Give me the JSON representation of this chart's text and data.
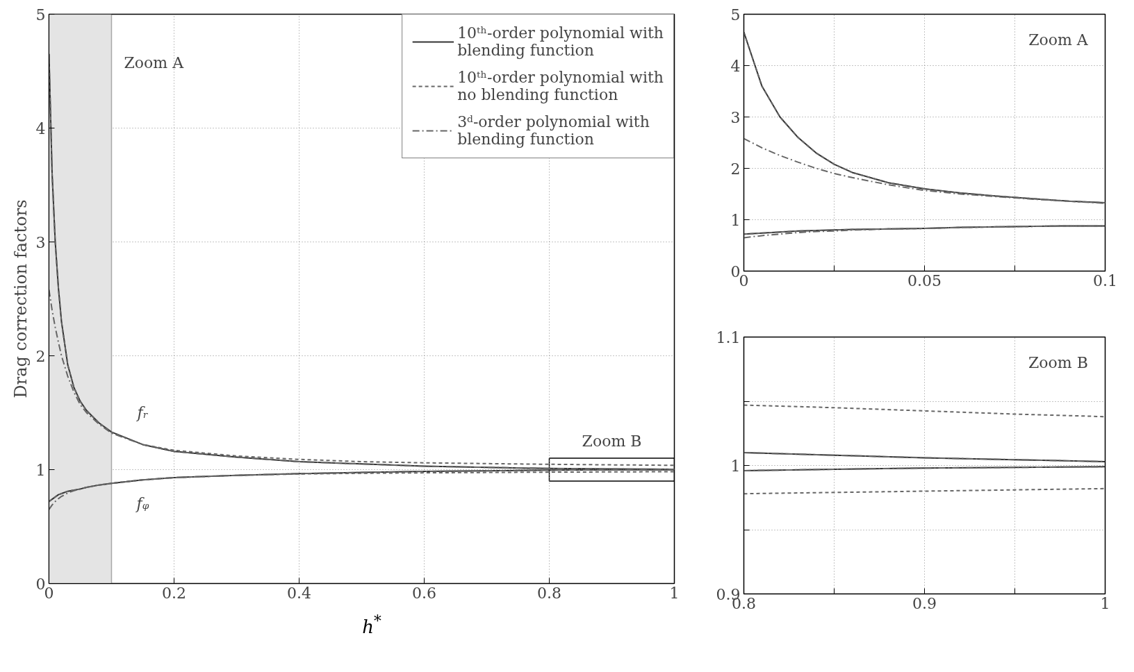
{
  "chart_data": [
    {
      "type": "line",
      "xlabel": "h$^{*}$",
      "ylabel": "Drag correction factors",
      "xlim": [
        0,
        1
      ],
      "ylim": [
        0,
        5
      ],
      "xticks": [
        0,
        0.2,
        0.4,
        0.6,
        0.8,
        1
      ],
      "yticks": [
        0,
        1,
        2,
        3,
        4,
        5
      ],
      "grid": true,
      "legend": "top right",
      "x": [
        0,
        0.005,
        0.01,
        0.015,
        0.02,
        0.03,
        0.04,
        0.05,
        0.06,
        0.08,
        0.1,
        0.15,
        0.2,
        0.3,
        0.4,
        0.5,
        0.6,
        0.7,
        0.8,
        0.9,
        1.0
      ],
      "series": [
        {
          "name": "10ᵗʰ-order polynomial with blending function",
          "color": "#333333",
          "line_style": "solid",
          "values": [
            4.65,
            3.6,
            3.0,
            2.6,
            2.3,
            1.92,
            1.72,
            1.6,
            1.52,
            1.41,
            1.33,
            1.22,
            1.16,
            1.11,
            1.07,
            1.05,
            1.03,
            1.02,
            1.01,
            1.006,
            1.003
          ]
        },
        {
          "color": "#333333",
          "line_style": "solid",
          "values": [
            0.72,
            0.74,
            0.76,
            0.78,
            0.79,
            0.81,
            0.82,
            0.83,
            0.845,
            0.865,
            0.88,
            0.91,
            0.93,
            0.95,
            0.965,
            0.975,
            0.985,
            0.99,
            0.996,
            0.998,
            0.999
          ]
        },
        {
          "name": "10ᵗʰ-order polynomial with no blending function",
          "color": "#666666",
          "line_style": "dashed",
          "values": [
            4.65,
            3.6,
            3.0,
            2.6,
            2.3,
            1.92,
            1.72,
            1.6,
            1.52,
            1.41,
            1.33,
            1.22,
            1.17,
            1.12,
            1.09,
            1.07,
            1.06,
            1.053,
            1.047,
            1.042,
            1.038
          ]
        },
        {
          "color": "#666666",
          "line_style": "dashed",
          "values": [
            0.72,
            0.74,
            0.76,
            0.78,
            0.79,
            0.81,
            0.82,
            0.83,
            0.845,
            0.865,
            0.88,
            0.91,
            0.93,
            0.95,
            0.962,
            0.968,
            0.972,
            0.975,
            0.978,
            0.98,
            0.982
          ]
        },
        {
          "name": "3ᵈ-order polynomial with blending function",
          "color": "#666666",
          "line_style": "dashdot",
          "values": [
            2.58,
            2.4,
            2.25,
            2.12,
            2.0,
            1.82,
            1.68,
            1.57,
            1.5,
            1.4,
            1.32,
            1.22,
            1.16,
            1.11,
            1.07,
            1.05,
            1.03,
            1.02,
            1.01,
            1.006,
            1.003
          ]
        },
        {
          "color": "#666666",
          "line_style": "dashdot",
          "values": [
            0.65,
            0.69,
            0.72,
            0.745,
            0.765,
            0.795,
            0.815,
            0.83,
            0.845,
            0.865,
            0.88,
            0.91,
            0.93,
            0.95,
            0.965,
            0.975,
            0.985,
            0.99,
            0.996,
            0.998,
            0.999
          ]
        }
      ],
      "bands": [
        {
          "axis": "x",
          "from": 0,
          "to": 0.1,
          "color": "#e4e4e4",
          "label": "Zoom A"
        }
      ],
      "annotations": [
        "fᵣ",
        "fᵩ",
        "Zoom B"
      ]
    },
    {
      "type": "line",
      "xlim": [
        0,
        0.1
      ],
      "ylim": [
        0,
        5
      ],
      "xticks": [
        0,
        {
          "value": 0.025,
          "label": null
        },
        0.05,
        {
          "value": 0.075,
          "label": null
        },
        0.1
      ],
      "yticks": [
        0,
        1,
        2,
        3,
        4,
        5
      ],
      "grid": true,
      "x": [
        0,
        0.005,
        0.01,
        0.015,
        0.02,
        0.025,
        0.03,
        0.04,
        0.05,
        0.06,
        0.07,
        0.08,
        0.09,
        0.1
      ],
      "series": [
        {
          "color": "#333333",
          "line_style": "solid",
          "values": [
            4.65,
            3.6,
            3.0,
            2.6,
            2.3,
            2.08,
            1.92,
            1.72,
            1.6,
            1.52,
            1.46,
            1.41,
            1.36,
            1.33
          ]
        },
        {
          "color": "#333333",
          "line_style": "solid",
          "values": [
            0.72,
            0.74,
            0.76,
            0.78,
            0.79,
            0.8,
            0.81,
            0.82,
            0.83,
            0.85,
            0.86,
            0.87,
            0.88,
            0.88
          ]
        },
        {
          "color": "#666666",
          "line_style": "dashed",
          "values": [
            4.65,
            3.6,
            3.0,
            2.6,
            2.3,
            2.08,
            1.92,
            1.72,
            1.6,
            1.52,
            1.46,
            1.41,
            1.36,
            1.33
          ]
        },
        {
          "color": "#666666",
          "line_style": "dashed",
          "values": [
            0.72,
            0.74,
            0.76,
            0.78,
            0.79,
            0.8,
            0.81,
            0.82,
            0.83,
            0.85,
            0.86,
            0.87,
            0.88,
            0.88
          ]
        },
        {
          "color": "#666666",
          "line_style": "dashdot",
          "values": [
            2.58,
            2.4,
            2.25,
            2.12,
            2.0,
            1.9,
            1.82,
            1.68,
            1.57,
            1.5,
            1.45,
            1.4,
            1.36,
            1.32
          ]
        },
        {
          "color": "#666666",
          "line_style": "dashdot",
          "values": [
            0.65,
            0.69,
            0.72,
            0.75,
            0.77,
            0.78,
            0.8,
            0.82,
            0.83,
            0.85,
            0.86,
            0.87,
            0.88,
            0.88
          ]
        }
      ],
      "annotations": [
        "Zoom A"
      ]
    },
    {
      "type": "line",
      "xlim": [
        0.8,
        1
      ],
      "ylim": [
        0.9,
        1.1
      ],
      "xticks": [
        0.8,
        {
          "value": 0.85,
          "label": null
        },
        0.9,
        {
          "value": 0.95,
          "label": null
        },
        1
      ],
      "yticks": [
        0.9,
        {
          "value": 0.95,
          "label": null
        },
        1,
        {
          "value": 1.05,
          "label": null
        },
        1.1
      ],
      "grid": true,
      "x": [
        0.8,
        0.85,
        0.9,
        0.95,
        1.0
      ],
      "series": [
        {
          "color": "#333333",
          "line_style": "solid",
          "values": [
            1.01,
            1.008,
            1.006,
            1.0045,
            1.003
          ]
        },
        {
          "color": "#333333",
          "line_style": "solid",
          "values": [
            0.996,
            0.997,
            0.998,
            0.9985,
            0.999
          ]
        },
        {
          "color": "#666666",
          "line_style": "dashed",
          "values": [
            1.047,
            1.045,
            1.0425,
            1.04,
            1.038
          ]
        },
        {
          "color": "#666666",
          "line_style": "dashed",
          "values": [
            0.978,
            0.979,
            0.98,
            0.981,
            0.982
          ]
        },
        {
          "color": "#666666",
          "line_style": "dashdot",
          "values": [
            1.01,
            1.008,
            1.006,
            1.0045,
            1.003
          ]
        },
        {
          "color": "#666666",
          "line_style": "dashdot",
          "values": [
            0.996,
            0.997,
            0.998,
            0.9985,
            0.999
          ]
        }
      ],
      "annotations": [
        "Zoom B"
      ]
    }
  ]
}
